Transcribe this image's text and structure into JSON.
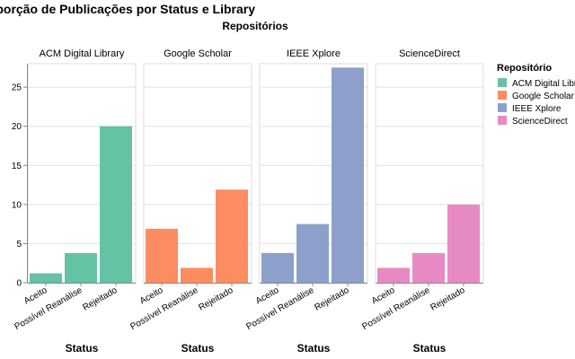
{
  "chart_data": {
    "type": "bar",
    "title": "Proporção de Publicações por Status e Library",
    "facet_label": "Repositórios",
    "xlabel": "Status",
    "ylabel": "",
    "categories": [
      "Aceito",
      "Possível Reanálise",
      "Rejeitado"
    ],
    "ylim": [
      0,
      28
    ],
    "yticks": [
      0,
      5,
      10,
      15,
      20,
      25
    ],
    "grid": true,
    "legend_title": "Repositório",
    "legend_position": "right",
    "series": [
      {
        "name": "ACM Digital Library",
        "color": "#66c2a5",
        "values": [
          1.2,
          3.8,
          20.0
        ]
      },
      {
        "name": "Google Scholar",
        "color": "#fc8d62",
        "values": [
          6.9,
          1.9,
          11.9
        ]
      },
      {
        "name": "IEEE Xplore",
        "color": "#8da0cb",
        "values": [
          3.8,
          7.5,
          27.5
        ]
      },
      {
        "name": "ScienceDirect",
        "color": "#e78ac3",
        "values": [
          1.9,
          3.8,
          10.0
        ]
      }
    ]
  }
}
